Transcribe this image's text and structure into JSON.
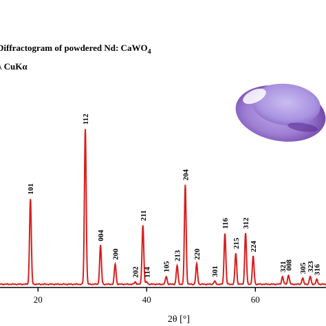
{
  "chart_data": {
    "type": "line",
    "title_line1": "Diffractogram of powdered Nd: CaWO",
    "title_line1_sub": "4",
    "title_line2": "λ CuKα",
    "xlabel": "2θ [°]",
    "xlim": [
      13,
      73
    ],
    "ylim": [
      0,
      100
    ],
    "x_ticks": [
      20,
      40,
      60
    ],
    "grid": false,
    "line_color": "#d81e1e",
    "peaks": [
      {
        "x": 18.6,
        "y": 55,
        "label": "101"
      },
      {
        "x": 28.7,
        "y": 100,
        "label": "112"
      },
      {
        "x": 31.5,
        "y": 25,
        "label": "004"
      },
      {
        "x": 34.2,
        "y": 13,
        "label": "200"
      },
      {
        "x": 37.9,
        "y": 1.5,
        "label": "202"
      },
      {
        "x": 39.3,
        "y": 38,
        "label": "211"
      },
      {
        "x": 40.0,
        "y": 1.5,
        "label": "114"
      },
      {
        "x": 43.6,
        "y": 5,
        "label": "105"
      },
      {
        "x": 45.6,
        "y": 12,
        "label": "213"
      },
      {
        "x": 47.1,
        "y": 64,
        "label": "204"
      },
      {
        "x": 49.2,
        "y": 13,
        "label": "220"
      },
      {
        "x": 52.5,
        "y": 2,
        "label": "301"
      },
      {
        "x": 54.4,
        "y": 33,
        "label": "116"
      },
      {
        "x": 56.4,
        "y": 20,
        "label": "215"
      },
      {
        "x": 58.2,
        "y": 33,
        "label": "312"
      },
      {
        "x": 59.6,
        "y": 18,
        "label": "224"
      },
      {
        "x": 65.0,
        "y": 5,
        "label": "321"
      },
      {
        "x": 66.1,
        "y": 6,
        "label": "008"
      },
      {
        "x": 68.7,
        "y": 4,
        "label": "305"
      },
      {
        "x": 70.1,
        "y": 5,
        "label": "323"
      },
      {
        "x": 71.3,
        "y": 3,
        "label": "316"
      }
    ]
  }
}
